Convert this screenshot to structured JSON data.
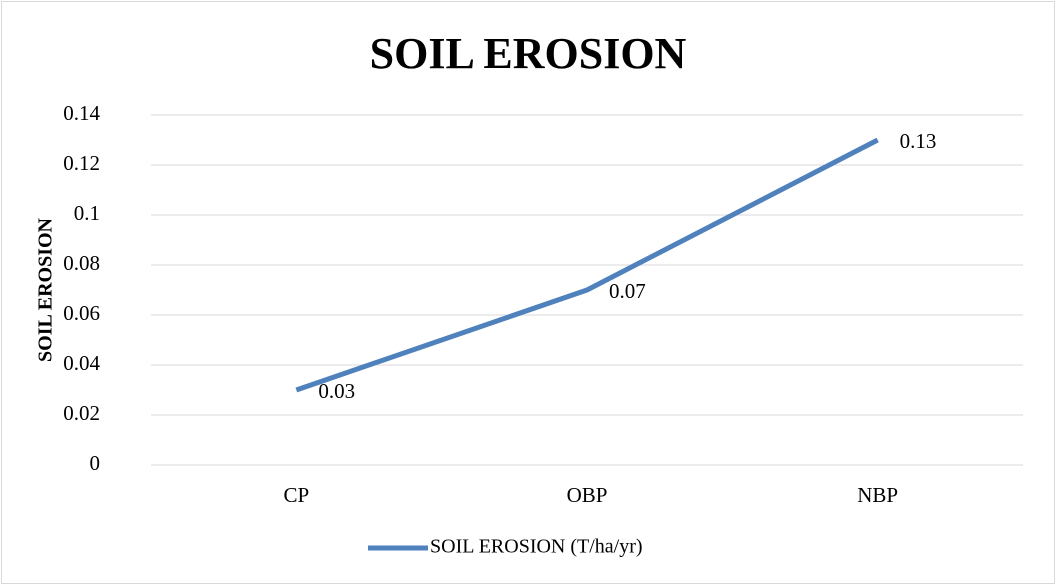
{
  "chart_data": {
    "type": "line",
    "title": "SOIL EROSION",
    "y_label": "SOIL EROSION",
    "categories": [
      "CP",
      "OBP",
      "NBP"
    ],
    "series": [
      {
        "name": "SOIL EROSION (T/ha/yr)",
        "color": "#4f81bd",
        "values": [
          0.03,
          0.07,
          0.13
        ]
      }
    ],
    "ylim": [
      0,
      0.14
    ],
    "yticks": [
      0,
      0.02,
      0.04,
      0.06,
      0.08,
      0.1,
      0.12,
      0.14
    ],
    "grid": true,
    "legend": "bottom"
  }
}
